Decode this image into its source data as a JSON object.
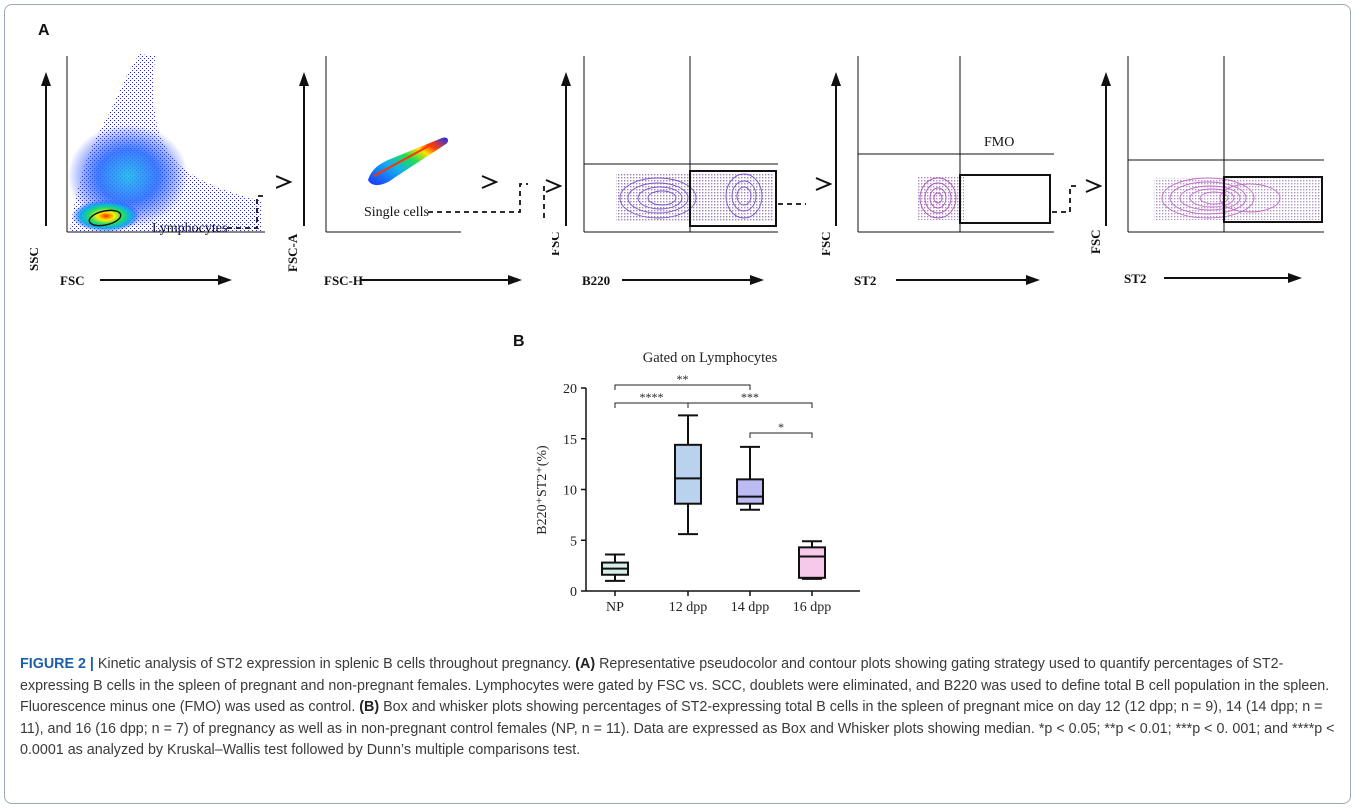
{
  "panel_a": {
    "letter": "A",
    "plots": [
      {
        "x_label": "FSC",
        "y_label": "SSC",
        "gate_label": "Lymphocytes"
      },
      {
        "x_label": "FSC-H",
        "y_label": "FSC-A",
        "gate_label": "Single cells"
      },
      {
        "x_label": "B220",
        "y_label": "FSC"
      },
      {
        "x_label": "ST2",
        "y_label": "FSC",
        "gate_label": "FMO"
      },
      {
        "x_label": "ST2",
        "y_label": "FSC"
      }
    ]
  },
  "panel_b": {
    "letter": "B"
  },
  "chart_data": {
    "type": "box",
    "title": "Gated on Lymphocytes",
    "ylabel": "B220⁺ST2⁺(%)",
    "ylim": [
      0,
      20
    ],
    "yticks": [
      "0",
      "5",
      "10",
      "15",
      "20"
    ],
    "categories": [
      "NP",
      "12 dpp",
      "14 dpp",
      "16 dpp"
    ],
    "colors": [
      "#d8ecec",
      "#b9d3ef",
      "#bcbcf2",
      "#f6c8ea"
    ],
    "boxes": [
      {
        "min": 1.0,
        "q1": 1.6,
        "median": 2.2,
        "q3": 2.8,
        "max": 3.6
      },
      {
        "min": 5.6,
        "q1": 8.6,
        "median": 11.1,
        "q3": 14.4,
        "max": 17.3
      },
      {
        "min": 8.0,
        "q1": 8.6,
        "median": 9.3,
        "q3": 11.0,
        "max": 14.2
      },
      {
        "min": 1.2,
        "q1": 1.3,
        "median": 3.4,
        "q3": 4.3,
        "max": 4.9
      }
    ],
    "significance": [
      {
        "from": 0,
        "to": 2,
        "label": "**"
      },
      {
        "from": 0,
        "to": 1,
        "label": "****"
      },
      {
        "from": 1,
        "to": 3,
        "label": "***"
      },
      {
        "from": 2,
        "to": 3,
        "label": "*"
      }
    ]
  },
  "caption": {
    "figure_label": "FIGURE 2 |",
    "text_1": " Kinetic analysis of ST2 expression in splenic B cells throughout pregnancy. ",
    "label_a": "(A)",
    "text_2": " Representative pseudocolor and contour plots showing gating strategy used to quantify percentages of ST2-expressing B cells in the spleen of pregnant and non-pregnant females. Lymphocytes were gated by FSC vs. SCC, doublets were eliminated, and B220 was used to define total B cell population in the spleen. Fluorescence minus one (FMO) was used as control. ",
    "label_b": "(B)",
    "text_3": " Box and whisker plots showing percentages of ST2-expressing total B cells in the spleen of pregnant mice on day 12 (12 dpp; n = 9), 14 (14 dpp; n = 11), and 16 (16 dpp; n = 7) of pregnancy as well as in non-pregnant control females (NP, n = 11). Data are expressed as Box and Whisker plots showing median. *p < 0.05; **p < 0.01; ***p < 0. 001; and ****p < 0.0001 as analyzed by Kruskal–Wallis test followed by Dunn’s multiple comparisons test."
  }
}
